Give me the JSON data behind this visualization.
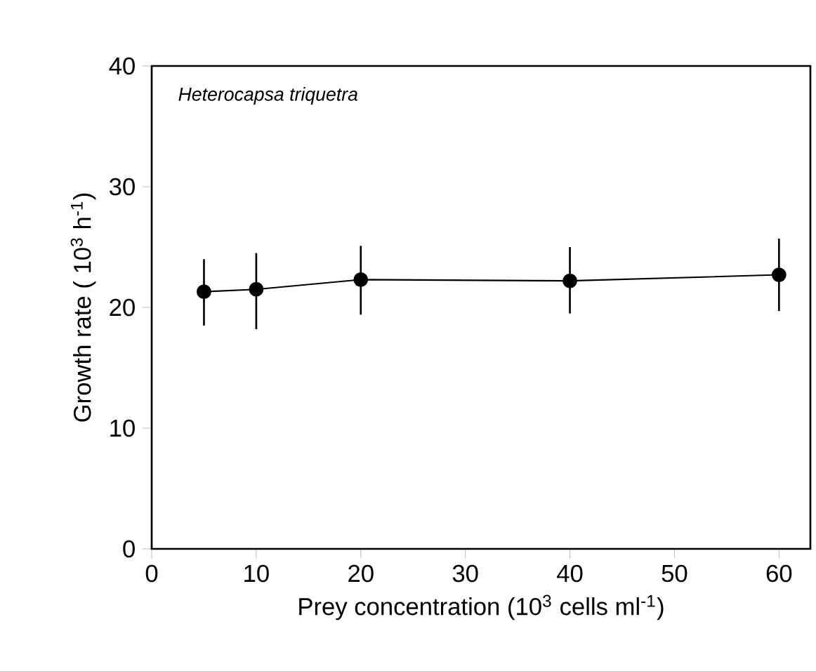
{
  "chart_data": {
    "type": "line",
    "xlabel": "Prey concentration (10$^{3}$ cells ml$^{-1}$)",
    "ylabel": "Growth rate ( 10$^{3}$ h$^{-1}$)",
    "annotations": [
      "Heterocapsa triquetra"
    ],
    "x": [
      5,
      10,
      20,
      40,
      60
    ],
    "values": [
      21.3,
      21.5,
      22.3,
      22.2,
      22.7
    ],
    "errors": [
      [
        18.5,
        24.0
      ],
      [
        18.2,
        24.5
      ],
      [
        19.4,
        25.1
      ],
      [
        19.5,
        25.0
      ],
      [
        19.7,
        25.7
      ]
    ],
    "color": "#000000",
    "marker": "circle",
    "line_style": "solid",
    "grid": false,
    "xlim": [
      0,
      63
    ],
    "ylim": [
      0,
      40
    ],
    "xticks": [
      0,
      10,
      20,
      30,
      40,
      50,
      60
    ],
    "yticks": [
      0,
      10,
      20,
      30,
      40
    ]
  }
}
